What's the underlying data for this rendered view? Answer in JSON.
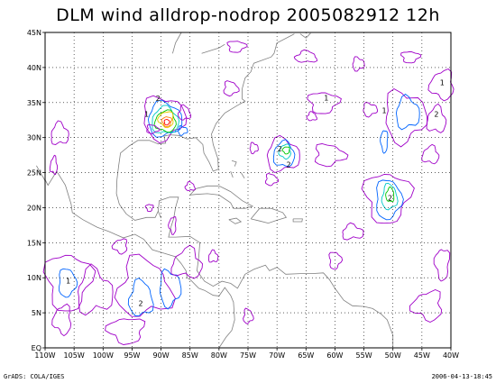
{
  "title": "DLM wind alldrop-nodrop 2005082912 12h",
  "footer": {
    "left": "GrADS: COLA/IGES",
    "right": "2006-04-13-18:45"
  },
  "map": {
    "lon_range": [
      -110,
      -40
    ],
    "lat_range": [
      0,
      45
    ],
    "x_ticks": [
      "110W",
      "105W",
      "100W",
      "95W",
      "90W",
      "85W",
      "80W",
      "75W",
      "70W",
      "65W",
      "60W",
      "55W",
      "50W",
      "45W",
      "40W"
    ],
    "y_ticks": [
      "EQ",
      "5N",
      "10N",
      "15N",
      "20N",
      "25N",
      "30N",
      "35N",
      "40N",
      "45N"
    ],
    "grid": "dotted",
    "contour_labels": [
      {
        "text": "2",
        "lon": -90.5,
        "lat": 35.2
      },
      {
        "text": "1",
        "lon": -92.5,
        "lat": 33.0
      },
      {
        "text": "2",
        "lon": -69.5,
        "lat": 28.0
      },
      {
        "text": "2",
        "lon": -68.0,
        "lat": 25.8
      },
      {
        "text": "2",
        "lon": -50.5,
        "lat": 21.0
      },
      {
        "text": "1",
        "lon": -51.5,
        "lat": 33.5
      },
      {
        "text": "2",
        "lon": -42.5,
        "lat": 33.0
      },
      {
        "text": "1",
        "lon": -41.5,
        "lat": 37.5
      },
      {
        "text": "1",
        "lon": -106.0,
        "lat": 9.2
      },
      {
        "text": "2",
        "lon": -93.5,
        "lat": 6.0
      },
      {
        "text": "1",
        "lon": -61.5,
        "lat": 35.3
      }
    ],
    "colors": {
      "coast": "#808080",
      "grid": "#000000",
      "level1": "#a000c8",
      "level2": "#0064ff",
      "level3": "#00c8c8",
      "level4": "#00c800",
      "level5": "#e6c800",
      "level6": "#ff8000",
      "level7": "#ff0000"
    }
  }
}
